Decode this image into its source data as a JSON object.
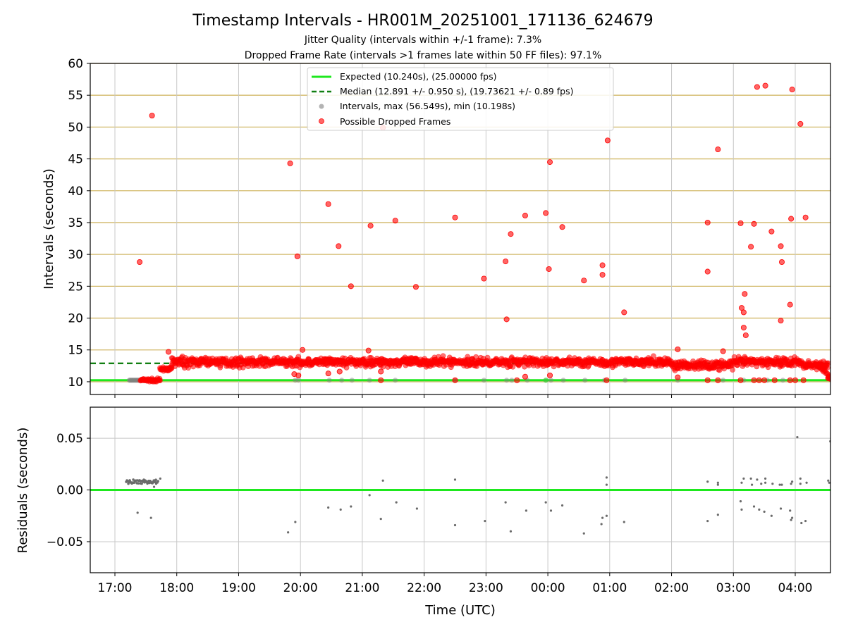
{
  "title": "Timestamp Intervals - HR001M_20251001_171136_624679",
  "subtitle_1": "Jitter Quality (intervals within +/-1 frame): 7.3%",
  "subtitle_2": "Dropped Frame Rate (intervals >1 frames late within 50 FF files): 97.1%",
  "colors": {
    "expected": "#1ee81e",
    "median": "#117f11",
    "dropped": "#ff0000",
    "interval": "#808080",
    "hgrid": "#d2b96a",
    "vgrid": "#c8c8c8"
  },
  "chart_data": [
    {
      "type": "scatter",
      "ylabel": "Intervals (seconds)",
      "xlabel": "",
      "ylim": [
        8,
        60
      ],
      "yticks": [
        "10",
        "15",
        "20",
        "25",
        "30",
        "35",
        "40",
        "45",
        "50",
        "55",
        "60"
      ],
      "grid": true,
      "legend_position": "top-center",
      "legend": {
        "expected": "Expected (10.240s), (25.00000 fps)",
        "median": "Median (12.891 +/- 0.950 s), (19.73621 +/- 0.89 fps)",
        "intervals": "Intervals, max (56.549s), min (10.198s)",
        "dropped": "Possible Dropped Frames"
      },
      "expected_y": 10.24,
      "median_y": 12.891,
      "interval_band": {
        "start": "17:14",
        "end": "17:44",
        "y": 10.24
      },
      "series": [
        {
          "type": "band",
          "segments": [
            {
              "start": "17:25",
              "end": "17:44",
              "y": 10.24
            },
            {
              "start": "17:44",
              "end": "17:55",
              "y": 12.0
            },
            {
              "start": "17:55",
              "end": "04:32",
              "y": 13.1
            },
            {
              "start": "04:32",
              "end": "04:36",
              "y": 10.6
            }
          ],
          "jitter": 0.7
        },
        {
          "type": "outliers",
          "points": [
            [
              "17:24",
              28.8
            ],
            [
              "17:36",
              51.8
            ],
            [
              "17:52",
              14.7
            ],
            [
              "19:50",
              44.3
            ],
            [
              "19:57",
              29.7
            ],
            [
              "19:54",
              11.2
            ],
            [
              "19:58",
              11.0
            ],
            [
              "20:02",
              15.0
            ],
            [
              "20:27",
              37.9
            ],
            [
              "20:27",
              11.3
            ],
            [
              "20:37",
              31.3
            ],
            [
              "20:38",
              11.6
            ],
            [
              "20:49",
              25.0
            ],
            [
              "21:06",
              14.9
            ],
            [
              "21:08",
              34.5
            ],
            [
              "21:18",
              11.6
            ],
            [
              "21:20",
              49.9
            ],
            [
              "21:32",
              35.3
            ],
            [
              "21:52",
              24.9
            ],
            [
              "22:30",
              35.8
            ],
            [
              "22:58",
              26.2
            ],
            [
              "23:19",
              28.9
            ],
            [
              "23:20",
              19.8
            ],
            [
              "23:24",
              33.2
            ],
            [
              "23:38",
              36.1
            ],
            [
              "23:38",
              10.8
            ],
            [
              "23:58",
              36.5
            ],
            [
              "00:01",
              27.7
            ],
            [
              "00:02",
              44.5
            ],
            [
              "00:02",
              11.0
            ],
            [
              "00:14",
              34.3
            ],
            [
              "00:35",
              25.9
            ],
            [
              "00:53",
              26.8
            ],
            [
              "00:53",
              28.3
            ],
            [
              "00:58",
              47.9
            ],
            [
              "01:14",
              20.9
            ],
            [
              "02:06",
              15.1
            ],
            [
              "02:06",
              10.7
            ],
            [
              "02:35",
              35.0
            ],
            [
              "02:35",
              27.3
            ],
            [
              "02:45",
              46.5
            ],
            [
              "02:50",
              14.8
            ],
            [
              "03:07",
              34.9
            ],
            [
              "03:08",
              21.6
            ],
            [
              "03:10",
              18.5
            ],
            [
              "03:10",
              20.9
            ],
            [
              "03:11",
              23.8
            ],
            [
              "03:12",
              17.3
            ],
            [
              "03:17",
              31.2
            ],
            [
              "03:20",
              34.8
            ],
            [
              "03:23",
              56.3
            ],
            [
              "03:31",
              56.5
            ],
            [
              "03:37",
              33.6
            ],
            [
              "03:46",
              31.3
            ],
            [
              "03:47",
              28.8
            ],
            [
              "03:46",
              19.6
            ],
            [
              "03:55",
              22.1
            ],
            [
              "03:56",
              35.6
            ],
            [
              "03:57",
              55.9
            ],
            [
              "04:05",
              50.5
            ],
            [
              "04:10",
              35.8
            ],
            [
              "21:18",
              10.24
            ],
            [
              "22:30",
              10.24
            ],
            [
              "02:35",
              10.24
            ],
            [
              "02:45",
              10.24
            ],
            [
              "03:07",
              10.24
            ],
            [
              "03:20",
              10.24
            ],
            [
              "03:25",
              10.24
            ],
            [
              "03:30",
              10.24
            ],
            [
              "03:40",
              10.24
            ],
            [
              "03:55",
              10.24
            ],
            [
              "04:00",
              10.24
            ],
            [
              "04:08",
              10.24
            ],
            [
              "00:57",
              10.24
            ],
            [
              "23:30",
              10.24
            ]
          ]
        },
        {
          "type": "gray_intervals",
          "points": [
            [
              "19:55",
              10.24
            ],
            [
              "19:58",
              10.24
            ],
            [
              "20:28",
              10.24
            ],
            [
              "20:40",
              10.24
            ],
            [
              "20:50",
              10.24
            ],
            [
              "21:07",
              10.24
            ],
            [
              "21:32",
              10.24
            ],
            [
              "22:30",
              10.24
            ],
            [
              "22:58",
              10.24
            ],
            [
              "23:20",
              10.24
            ],
            [
              "23:25",
              10.24
            ],
            [
              "23:40",
              10.24
            ],
            [
              "23:58",
              10.24
            ],
            [
              "00:03",
              10.24
            ],
            [
              "00:15",
              10.24
            ],
            [
              "00:36",
              10.24
            ],
            [
              "00:55",
              10.24
            ],
            [
              "01:15",
              10.24
            ],
            [
              "02:06",
              10.24
            ],
            [
              "02:50",
              10.24
            ],
            [
              "03:10",
              10.24
            ],
            [
              "03:33",
              10.24
            ],
            [
              "03:48",
              10.24
            ]
          ]
        }
      ]
    },
    {
      "type": "scatter",
      "ylabel": "Residuals (seconds)",
      "xlabel": "Time (UTC)",
      "ylim": [
        -0.08,
        0.08
      ],
      "yticks": [
        "−0.05",
        "0.00",
        "0.05"
      ],
      "ytick_values": [
        -0.05,
        0.0,
        0.05
      ],
      "xticks": [
        "17:00",
        "18:00",
        "19:00",
        "20:00",
        "21:00",
        "22:00",
        "23:00",
        "00:00",
        "01:00",
        "02:00",
        "03:00",
        "04:00"
      ],
      "grid": true,
      "zero_line": 0.0,
      "dense_cluster": {
        "start": "17:11",
        "end": "17:42",
        "center": 0.008,
        "spread": 0.002
      },
      "points": [
        [
          "17:22",
          -0.022
        ],
        [
          "17:35",
          -0.027
        ],
        [
          "17:38",
          0.003
        ],
        [
          "17:40",
          0.006
        ],
        [
          "17:44",
          0.011
        ],
        [
          "19:48",
          -0.041
        ],
        [
          "19:55",
          -0.031
        ],
        [
          "20:27",
          -0.017
        ],
        [
          "20:39",
          -0.019
        ],
        [
          "20:49",
          -0.016
        ],
        [
          "21:07",
          -0.005
        ],
        [
          "21:18",
          -0.028
        ],
        [
          "21:20",
          0.009
        ],
        [
          "21:33",
          -0.012
        ],
        [
          "21:53",
          -0.018
        ],
        [
          "22:30",
          0.01
        ],
        [
          "22:30",
          -0.034
        ],
        [
          "22:59",
          -0.03
        ],
        [
          "23:19",
          -0.012
        ],
        [
          "23:24",
          -0.04
        ],
        [
          "23:39",
          -0.02
        ],
        [
          "23:58",
          -0.012
        ],
        [
          "24:03",
          -0.02
        ],
        [
          "24:14",
          -0.015
        ],
        [
          "24:35",
          -0.042
        ],
        [
          "24:52",
          -0.033
        ],
        [
          "24:53",
          -0.027
        ],
        [
          "24:57",
          -0.025
        ],
        [
          "24:57",
          0.012
        ],
        [
          "24:57",
          0.005
        ],
        [
          "25:14",
          -0.031
        ],
        [
          "26:35",
          -0.03
        ],
        [
          "26:35",
          0.008
        ],
        [
          "26:45",
          -0.024
        ],
        [
          "26:45",
          0.007
        ],
        [
          "26:45",
          0.005
        ],
        [
          "27:07",
          -0.011
        ],
        [
          "27:08",
          -0.019
        ],
        [
          "27:08",
          0.007
        ],
        [
          "27:10",
          0.011
        ],
        [
          "27:17",
          0.011
        ],
        [
          "27:18",
          0.005
        ],
        [
          "27:20",
          -0.016
        ],
        [
          "27:23",
          0.01
        ],
        [
          "27:25",
          -0.019
        ],
        [
          "27:27",
          0.006
        ],
        [
          "27:30",
          -0.021
        ],
        [
          "27:31",
          0.011
        ],
        [
          "27:31",
          0.007
        ],
        [
          "27:37",
          -0.025
        ],
        [
          "27:38",
          0.006
        ],
        [
          "27:45",
          0.005
        ],
        [
          "27:46",
          -0.018
        ],
        [
          "27:47",
          0.005
        ],
        [
          "27:55",
          -0.02
        ],
        [
          "27:56",
          -0.029
        ],
        [
          "27:57",
          -0.027
        ],
        [
          "27:56",
          0.006
        ],
        [
          "27:57",
          0.008
        ],
        [
          "28:02",
          0.051
        ],
        [
          "28:05",
          0.011
        ],
        [
          "28:05",
          0.006
        ],
        [
          "28:06",
          -0.032
        ],
        [
          "28:10",
          -0.03
        ],
        [
          "28:11",
          0.007
        ],
        [
          "28:32",
          0.009
        ],
        [
          "28:33",
          0.007
        ],
        [
          "28:34",
          0.047
        ]
      ]
    }
  ]
}
